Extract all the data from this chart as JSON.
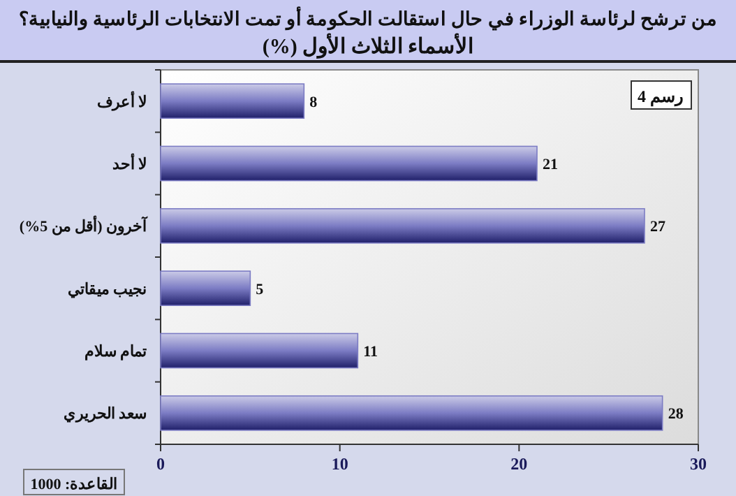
{
  "chart_data": {
    "type": "bar",
    "orientation": "horizontal",
    "title": "من ترشح لرئاسة الوزراء في حال استقالت الحكومة أو تمت الانتخابات الرئاسية والنيابية؟",
    "subtitle": "الأسماء الثلاث الأول (%)",
    "categories": [
      "لا أعرف",
      "لا أحد",
      "آخرون (أقل من 5%)",
      "نجيب ميقاتي",
      "تمام سلام",
      "سعد الحريري"
    ],
    "values": [
      8,
      21,
      27,
      5,
      11,
      28
    ],
    "color": "#7c7cc4",
    "xlim": [
      0,
      30
    ],
    "xticks": [
      0,
      10,
      20,
      30
    ],
    "data_labels": true,
    "grid": false,
    "annotations": [
      "رسم 4",
      "القاعدة: 1000"
    ]
  }
}
